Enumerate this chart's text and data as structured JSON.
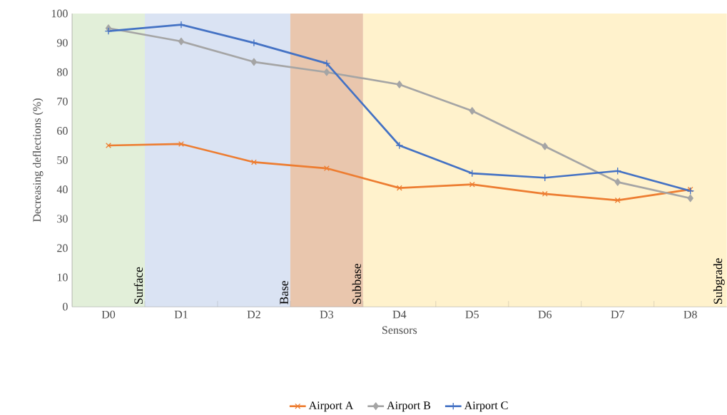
{
  "chart_data": {
    "type": "line",
    "xlabel": "Sensors",
    "ylabel": "Decreasing deflections (%)",
    "categories": [
      "D0",
      "D1",
      "D2",
      "D3",
      "D4",
      "D5",
      "D6",
      "D7",
      "D8"
    ],
    "series": [
      {
        "name": "Airport A",
        "color": "#ed7d31",
        "marker": "cross",
        "values": [
          55,
          55.5,
          49.3,
          47.2,
          40.5,
          41.7,
          38.5,
          36.3,
          40
        ]
      },
      {
        "name": "Airport B",
        "color": "#a5a5a5",
        "marker": "diamond",
        "values": [
          95,
          90.5,
          83.5,
          80,
          75.8,
          66.8,
          54.7,
          42.5,
          37
        ]
      },
      {
        "name": "Airport C",
        "color": "#4472c4",
        "marker": "plus",
        "values": [
          94,
          96.2,
          90,
          83,
          55,
          45.5,
          44,
          46.3,
          39.5
        ]
      }
    ],
    "bands": [
      {
        "axis": "x",
        "from": "D0",
        "to": "D0",
        "label": "Surface",
        "color": "#e2efd9"
      },
      {
        "axis": "x",
        "from": "D1",
        "to": "D2",
        "label": "Base",
        "color": "#dae3f3"
      },
      {
        "axis": "x",
        "from": "D3",
        "to": "D3",
        "label": "Subbase",
        "color": "#e9c6ad"
      },
      {
        "axis": "x",
        "from": "D4",
        "to": "D8",
        "label": "Subgrade",
        "color": "#fff2cc"
      }
    ],
    "ylim": [
      0,
      100
    ],
    "yticks": [
      0,
      10,
      20,
      30,
      40,
      50,
      60,
      70,
      80,
      90,
      100
    ],
    "grid": false,
    "legend": "bottom",
    "line_style": "solid"
  }
}
